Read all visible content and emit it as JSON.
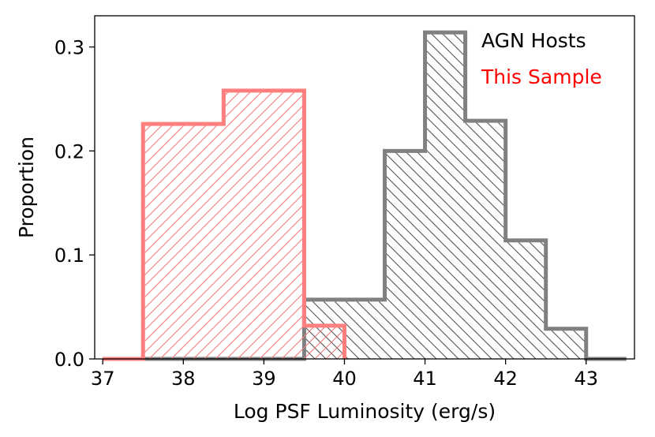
{
  "chart_data": {
    "type": "histogram",
    "xlabel": "Log PSF Luminosity (erg/s)",
    "ylabel": "Proportion",
    "xlim": [
      36.9,
      43.6
    ],
    "ylim": [
      0,
      0.33
    ],
    "xticks": [
      "37",
      "38",
      "39",
      "40",
      "41",
      "42",
      "43"
    ],
    "yticks": [
      "0.0",
      "0.1",
      "0.2",
      "0.3"
    ],
    "grid": false,
    "legend_placement": "top-right",
    "series": [
      {
        "name": "AGN Hosts",
        "color": "#808080",
        "hatch": "backslash",
        "bin_edges": [
          37.0,
          37.5,
          38.0,
          38.5,
          39.0,
          39.5,
          40.0,
          40.5,
          41.0,
          41.5,
          42.0,
          42.5,
          43.0,
          43.5
        ],
        "values": [
          0,
          0,
          0,
          0,
          0,
          0.057,
          0.057,
          0.2,
          0.314,
          0.229,
          0.114,
          0.029,
          0
        ]
      },
      {
        "name": "This Sample",
        "color": "#ff7f7f",
        "hatch": "slash",
        "bin_edges": [
          37.0,
          37.5,
          38.0,
          38.5,
          39.0,
          39.5,
          40.0
        ],
        "values": [
          0,
          0.226,
          0.226,
          0.258,
          0.258,
          0.032
        ]
      }
    ]
  }
}
